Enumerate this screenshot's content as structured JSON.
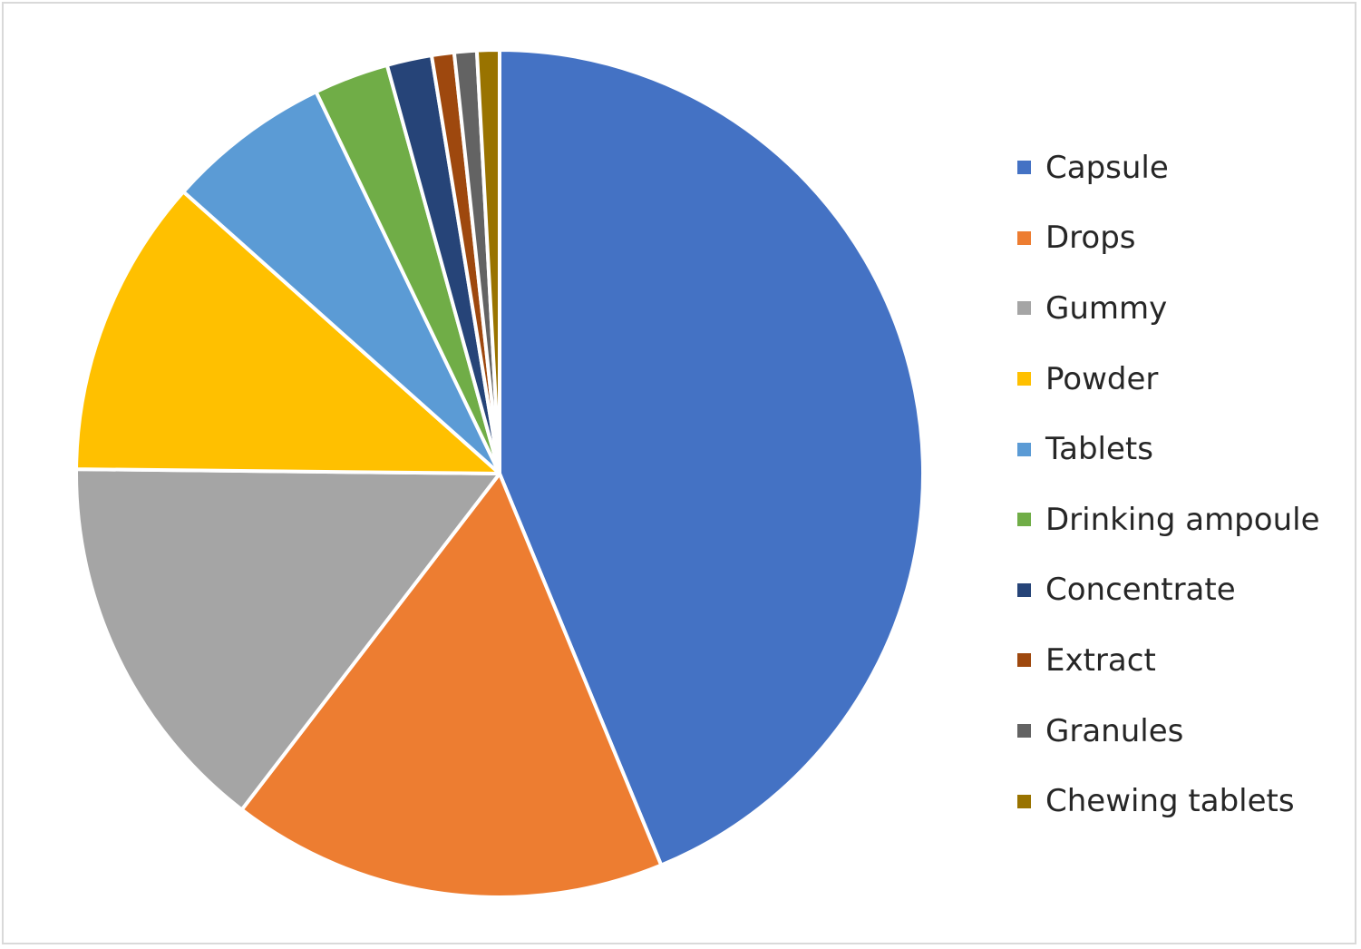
{
  "chart_data": {
    "type": "pie",
    "title": "",
    "start_angle_deg": 0,
    "direction": "clockwise",
    "legend_position": "right",
    "slices": [
      {
        "label": "Capsule",
        "value": 46.0,
        "color": "#4472C4"
      },
      {
        "label": "Drops",
        "value": 17.5,
        "color": "#ED7D31"
      },
      {
        "label": "Gummy",
        "value": 15.5,
        "color": "#A5A5A5"
      },
      {
        "label": "Powder",
        "value": 12.0,
        "color": "#FFC000"
      },
      {
        "label": "Tablets",
        "value": 6.6,
        "color": "#5B9BD5"
      },
      {
        "label": "Drinking ampoule",
        "value": 3.0,
        "color": "#70AD47"
      },
      {
        "label": "Concentrate",
        "value": 1.8,
        "color": "#264478"
      },
      {
        "label": "Extract",
        "value": 0.9,
        "color": "#9E480E"
      },
      {
        "label": "Granules",
        "value": 0.9,
        "color": "#636363"
      },
      {
        "label": "Chewing tablets",
        "value": 0.9,
        "color": "#997300"
      }
    ]
  }
}
